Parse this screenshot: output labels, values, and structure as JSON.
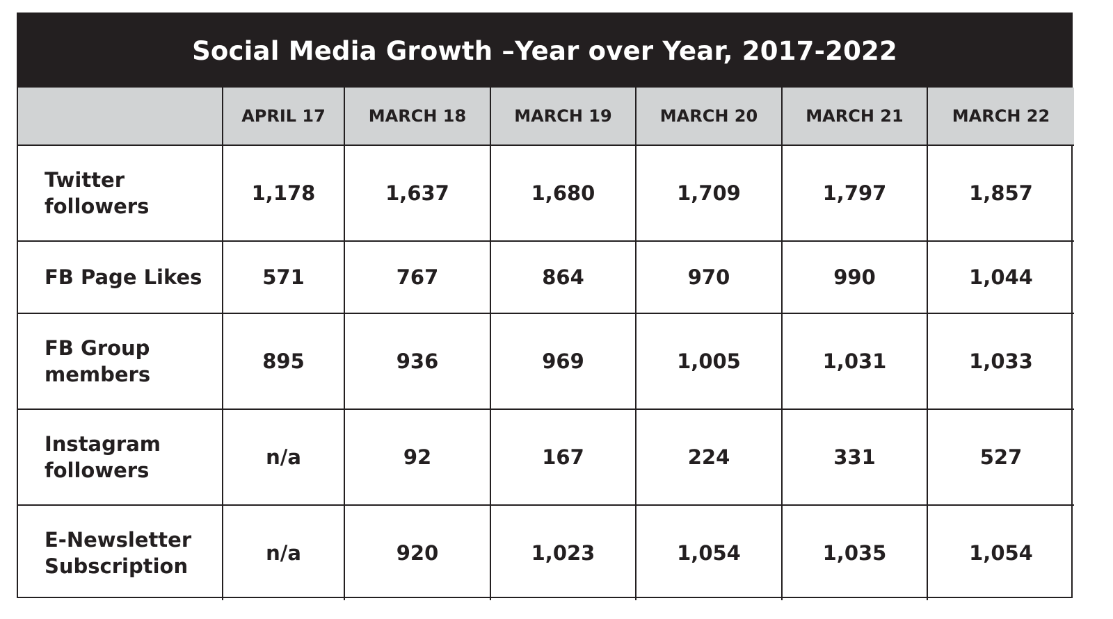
{
  "chart_data": {
    "type": "table",
    "title": "Social Media Growth –Year over Year, 2017-2022",
    "columns": [
      "",
      "APRIL 17",
      "MARCH 18",
      "MARCH 19",
      "MARCH 20",
      "MARCH 21",
      "MARCH 22"
    ],
    "rows": [
      {
        "label": "Twitter followers",
        "values": [
          "1,178",
          "1,637",
          "1,680",
          "1,709",
          "1,797",
          "1,857"
        ]
      },
      {
        "label": "FB Page Likes",
        "values": [
          "571",
          "767",
          "864",
          "970",
          "990",
          "1,044"
        ]
      },
      {
        "label": "FB Group members",
        "values": [
          "895",
          "936",
          "969",
          "1,005",
          "1,031",
          "1,033"
        ]
      },
      {
        "label": "Instagram followers",
        "values": [
          "n/a",
          "92",
          "167",
          "224",
          "331",
          "527"
        ]
      },
      {
        "label": "E-Newsletter Subscription",
        "values": [
          "n/a",
          "920",
          "1,023",
          "1,054",
          "1,035",
          "1,054"
        ]
      }
    ],
    "colors": {
      "title_bg": "#231f20",
      "header_bg": "#d1d3d4",
      "text": "#231f20"
    }
  }
}
